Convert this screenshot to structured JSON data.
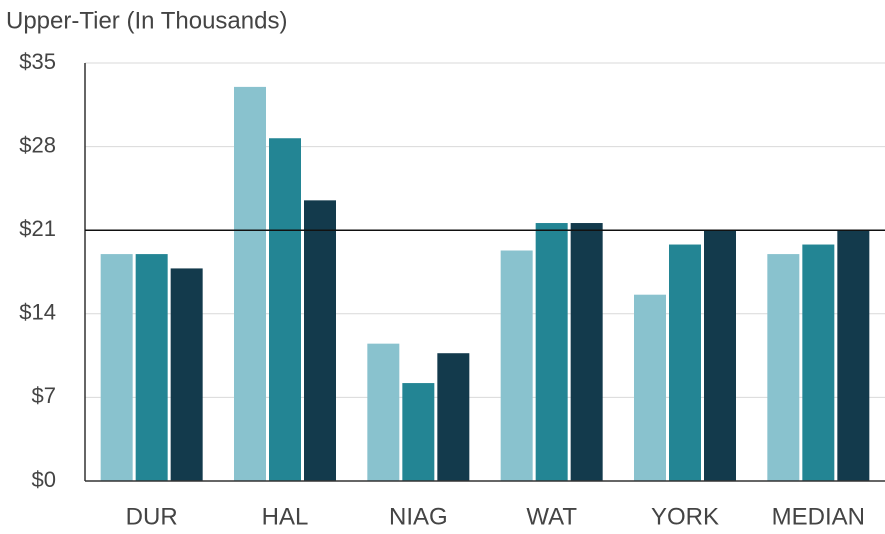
{
  "chart_data": {
    "type": "bar",
    "title": "Upper-Tier (In Thousands)",
    "categories": [
      "DUR",
      "HAL",
      "NIAG",
      "WAT",
      "YORK",
      "MEDIAN"
    ],
    "series": [
      {
        "color": "#89c2ce",
        "values": [
          19,
          33,
          11.5,
          19.3,
          15.6,
          19
        ]
      },
      {
        "color": "#238594",
        "values": [
          19,
          28.7,
          8.2,
          21.6,
          19.8,
          19.8
        ]
      },
      {
        "color": "#133a4c",
        "values": [
          17.8,
          23.5,
          10.7,
          21.6,
          21,
          21
        ]
      }
    ],
    "ylim": [
      0,
      35
    ],
    "yticks": [
      {
        "value": 0,
        "label": "$0"
      },
      {
        "value": 7,
        "label": "$7"
      },
      {
        "value": 14,
        "label": "$14"
      },
      {
        "value": 21,
        "label": "$21"
      },
      {
        "value": 28,
        "label": "$28"
      },
      {
        "value": 35,
        "label": "$35"
      }
    ],
    "reference_line": 21,
    "grid": true
  }
}
